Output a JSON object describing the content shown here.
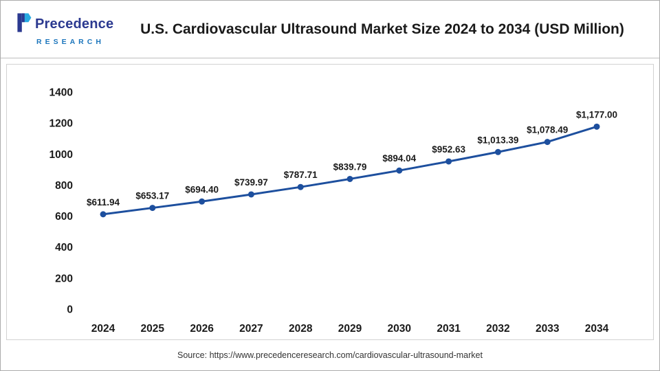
{
  "theme": {
    "logo-primary": "#2b3990",
    "logo-accent": "#1b75bc",
    "text": "#1a1a1a"
  },
  "header": {
    "logo": {
      "name": "Precedence",
      "subtitle": "RESEARCH"
    },
    "title": "U.S. Cardiovascular Ultrasound Market Size 2024 to 2034 (USD Million)"
  },
  "footer": {
    "source": "Source: https://www.precedenceresearch.com/cardiovascular-ultrasound-market"
  },
  "chart_data": {
    "type": "line",
    "title": "U.S. Cardiovascular Ultrasound Market Size 2024 to 2034 (USD Million)",
    "categories": [
      "2024",
      "2025",
      "2026",
      "2027",
      "2028",
      "2029",
      "2030",
      "2031",
      "2032",
      "2033",
      "2034"
    ],
    "values": [
      611.94,
      653.17,
      694.4,
      739.97,
      787.71,
      839.79,
      894.04,
      952.63,
      1013.39,
      1078.49,
      1177.0
    ],
    "point_labels": [
      "$611.94",
      "$653.17",
      "$694.40",
      "$739.97",
      "$787.71",
      "$839.79",
      "$894.04",
      "$952.63",
      "$1,013.39",
      "$1,078.49",
      "$1,177.00"
    ],
    "xlabel": "",
    "ylabel": "",
    "ylim": [
      0,
      1400
    ],
    "ytick_step": 200,
    "grid": false,
    "legend": false,
    "line_color": "#1d4f9e",
    "label_color": "#1a1a1a",
    "tick_color": "#1a1a1a"
  }
}
